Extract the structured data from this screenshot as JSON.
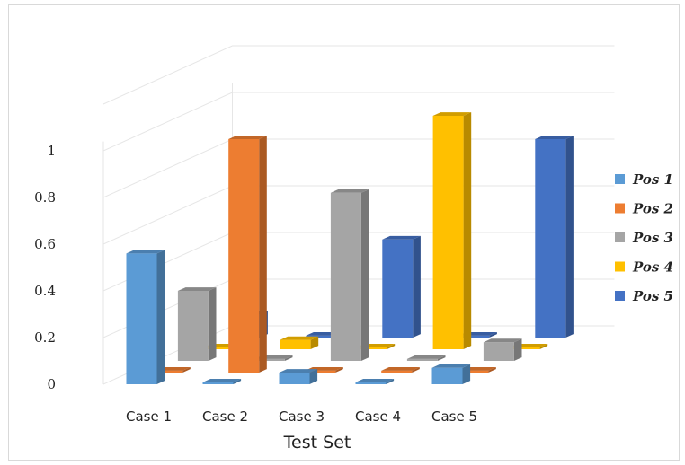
{
  "chart_data": {
    "type": "bar",
    "subtype": "3d-column",
    "title": "",
    "xlabel": "Test Set",
    "ylabel": "",
    "categories": [
      "Case 1",
      "Case 2",
      "Case 3",
      "Case 4",
      "Case 5"
    ],
    "ylim": [
      0,
      1
    ],
    "yticks": [
      "0",
      "0.2",
      "0.4",
      "0.6",
      "0.8",
      "1"
    ],
    "grid": true,
    "legend_position": "right",
    "series": [
      {
        "name": "Pos 1",
        "color": "#5b9bd5",
        "values": [
          0.56,
          0.0,
          0.05,
          0.0,
          0.07
        ]
      },
      {
        "name": "Pos 2",
        "color": "#ed7d31",
        "values": [
          0.0,
          1.0,
          0.0,
          0.0,
          0.0
        ]
      },
      {
        "name": "Pos 3",
        "color": "#a5a5a5",
        "values": [
          0.3,
          0.0,
          0.72,
          0.0,
          0.08
        ]
      },
      {
        "name": "Pos 4",
        "color": "#ffc000",
        "values": [
          0.0,
          0.04,
          0.0,
          1.0,
          0.0
        ]
      },
      {
        "name": "Pos 5",
        "color": "#4472c4",
        "values": [
          0.1,
          0.0,
          0.42,
          0.0,
          0.85
        ]
      }
    ]
  }
}
